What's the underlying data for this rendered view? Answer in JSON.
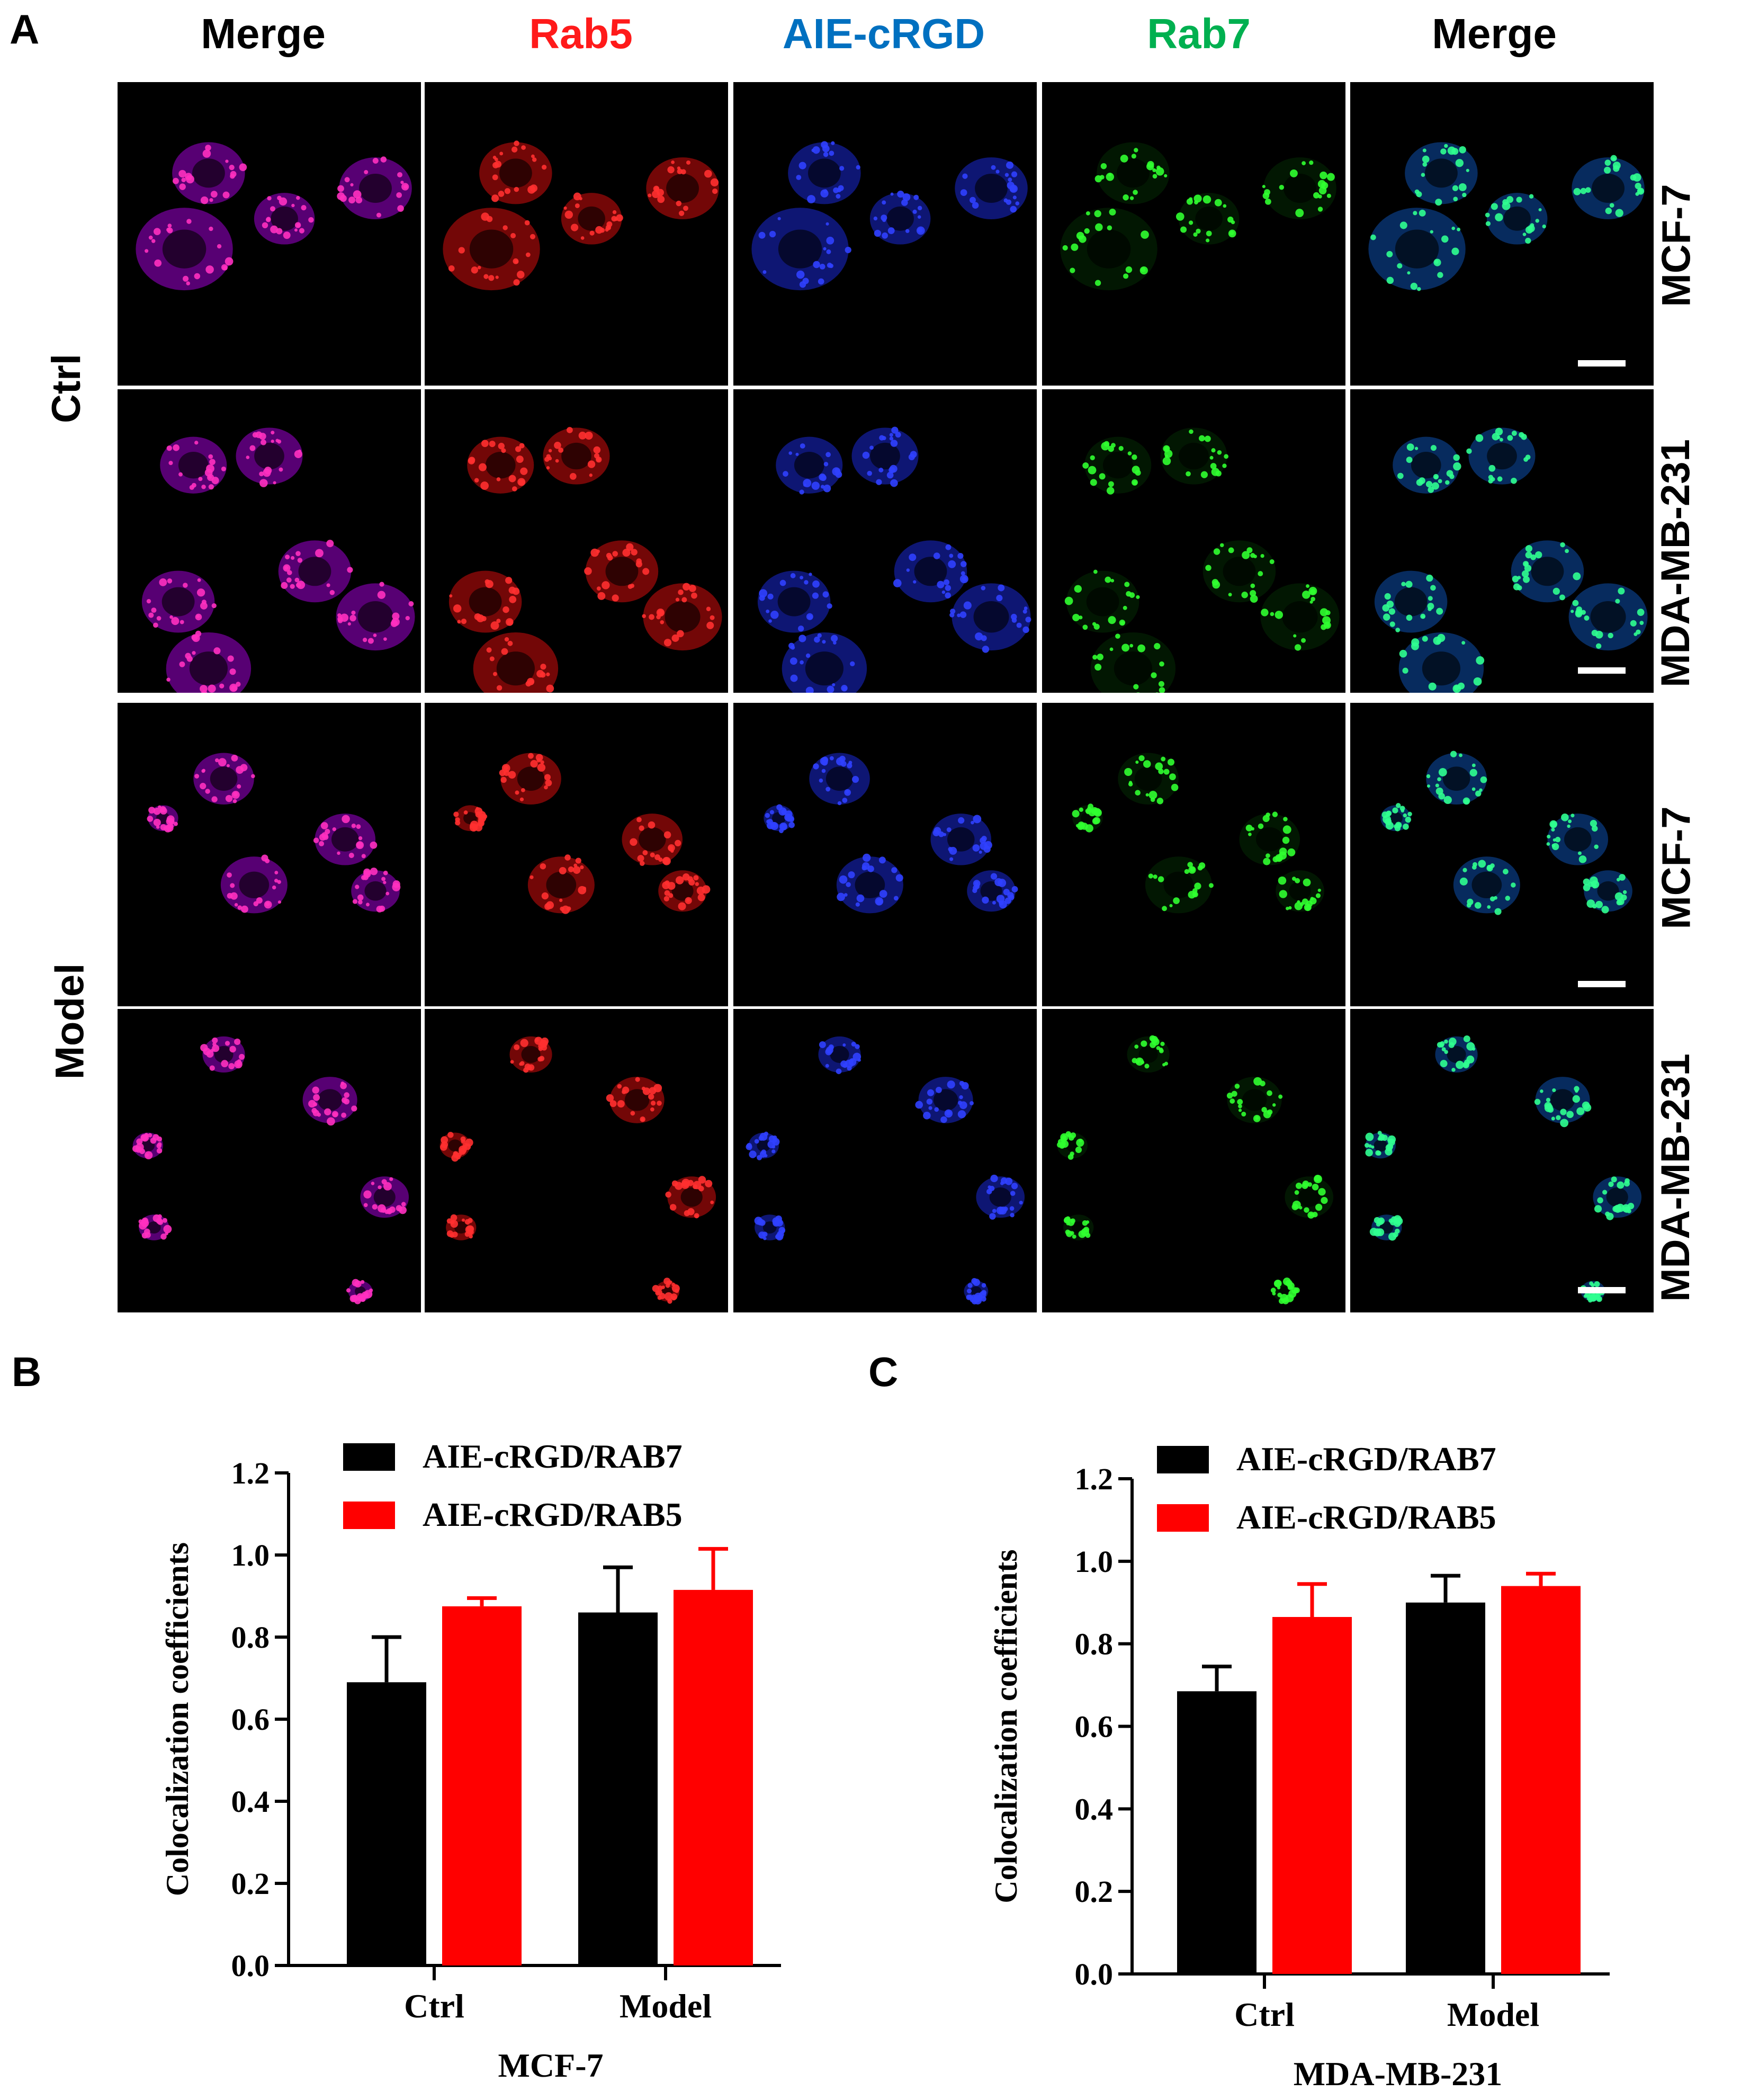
{
  "panel_a": {
    "letter": "A",
    "columns": [
      {
        "label": "Merge",
        "color": "#000000"
      },
      {
        "label": "Rab5",
        "color": "#ff1a1a"
      },
      {
        "label": "AIE-cRGD",
        "color": "#0070c0"
      },
      {
        "label": "Rab7",
        "color": "#00b050"
      },
      {
        "label": "Merge",
        "color": "#000000"
      }
    ],
    "groups": [
      {
        "label": "Ctrl",
        "rows": [
          "MCF-7",
          "MDA-MB-231"
        ]
      },
      {
        "label": "Model",
        "rows": [
          "MCF-7",
          "MDA-MB-231"
        ]
      }
    ]
  },
  "chart_data": [
    {
      "panel": "B",
      "type": "bar",
      "categories": [
        "Ctrl",
        "Model"
      ],
      "series": [
        {
          "name": "AIE-cRGD/RAB7",
          "color": "#000000",
          "values": [
            0.69,
            0.86
          ],
          "errors": [
            0.11,
            0.11
          ]
        },
        {
          "name": "AIE-cRGD/RAB5",
          "color": "#ff0000",
          "values": [
            0.875,
            0.915
          ],
          "errors": [
            0.02,
            0.1
          ]
        }
      ],
      "xlabel": "MCF-7",
      "ylabel": "Colocalization coefficients",
      "ylim": [
        0.0,
        1.2
      ],
      "yticks": [
        "0.0",
        "0.2",
        "0.4",
        "0.6",
        "0.8",
        "1.0",
        "1.2"
      ],
      "legend_position": "top"
    },
    {
      "panel": "C",
      "type": "bar",
      "categories": [
        "Ctrl",
        "Model"
      ],
      "series": [
        {
          "name": "AIE-cRGD/RAB7",
          "color": "#000000",
          "values": [
            0.685,
            0.9
          ],
          "errors": [
            0.06,
            0.065
          ]
        },
        {
          "name": "AIE-cRGD/RAB5",
          "color": "#ff0000",
          "values": [
            0.865,
            0.94
          ],
          "errors": [
            0.08,
            0.03
          ]
        }
      ],
      "xlabel": "MDA-MB-231",
      "ylabel": "Colocalization coefficients",
      "ylim": [
        0.0,
        1.2
      ],
      "yticks": [
        "0.0",
        "0.2",
        "0.4",
        "0.6",
        "0.8",
        "1.0",
        "1.2"
      ],
      "legend_position": "top"
    }
  ]
}
